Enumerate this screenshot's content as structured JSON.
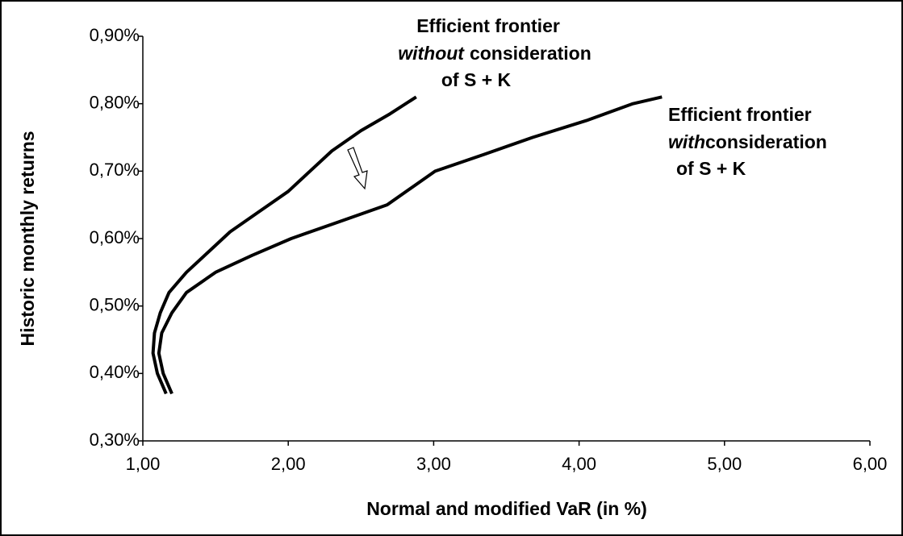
{
  "chart_data": {
    "type": "line",
    "xlabel": "Normal and modified VaR  (in %)",
    "ylabel": "Historic monthly returns",
    "xlim": [
      1,
      6
    ],
    "xticks": [
      {
        "value": 1,
        "label": "1,00"
      },
      {
        "value": 2,
        "label": "2,00"
      },
      {
        "value": 3,
        "label": "3,00"
      },
      {
        "value": 4,
        "label": "4,00"
      },
      {
        "value": 5,
        "label": "5,00"
      },
      {
        "value": 6,
        "label": "6,00"
      }
    ],
    "ylim": [
      0.3,
      0.9
    ],
    "yticks": [
      {
        "value": 0.3,
        "label": "0,30%"
      },
      {
        "value": 0.4,
        "label": "0,40%"
      },
      {
        "value": 0.5,
        "label": "0,50%"
      },
      {
        "value": 0.6,
        "label": "0,60%"
      },
      {
        "value": 0.7,
        "label": "0,70%"
      },
      {
        "value": 0.8,
        "label": "0,80%"
      },
      {
        "value": 0.9,
        "label": "0,90%"
      }
    ],
    "series": [
      {
        "color": "#000000",
        "x": [
          1.16,
          1.1,
          1.07,
          1.08,
          1.12,
          1.18,
          1.3,
          1.45,
          1.6,
          1.8,
          2.0,
          2.15,
          2.3,
          2.5,
          2.7,
          2.88
        ],
        "values": [
          0.37,
          0.4,
          0.43,
          0.46,
          0.49,
          0.52,
          0.55,
          0.58,
          0.61,
          0.64,
          0.67,
          0.7,
          0.73,
          0.76,
          0.785,
          0.81
        ]
      },
      {
        "color": "#000000",
        "x": [
          1.2,
          1.14,
          1.11,
          1.13,
          1.2,
          1.3,
          1.5,
          1.75,
          2.02,
          2.35,
          2.68,
          3.01,
          3.35,
          3.68,
          4.05,
          4.37,
          4.57
        ],
        "values": [
          0.37,
          0.4,
          0.43,
          0.46,
          0.49,
          0.52,
          0.55,
          0.575,
          0.6,
          0.625,
          0.65,
          0.7,
          0.725,
          0.75,
          0.775,
          0.8,
          0.81
        ]
      }
    ],
    "annotations": [
      {
        "lines": [
          [
            "Efficient frontier"
          ],
          [
            "without",
            "consideration"
          ],
          [
            "of S + K"
          ]
        ]
      },
      {
        "lines": [
          [
            "Efficient frontier"
          ],
          [
            "with",
            "consideration"
          ],
          [
            "of S + K"
          ]
        ]
      }
    ]
  }
}
